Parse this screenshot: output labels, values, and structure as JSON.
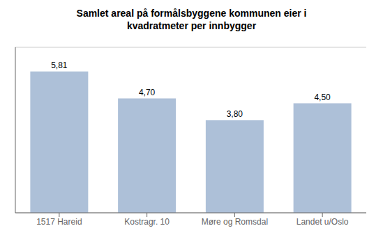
{
  "chart_data": {
    "type": "bar",
    "title": "Samlet areal på formålsbyggene kommunen eier i\nkvadratmeter per innbygger",
    "categories": [
      "1517 Hareid",
      "Kostragr. 10",
      "Møre og Romsdal",
      "Landet u/Oslo"
    ],
    "values": [
      5.81,
      4.7,
      3.8,
      4.5
    ],
    "value_labels": [
      "5,81",
      "4,70",
      "3,80",
      "4,50"
    ],
    "data_labels": true,
    "color": "#adc0d8",
    "ylim": [
      0,
      6.8
    ],
    "yticks": [
      0,
      1,
      2,
      3,
      4,
      5,
      6
    ],
    "grid": true,
    "tick_labels": "x"
  }
}
